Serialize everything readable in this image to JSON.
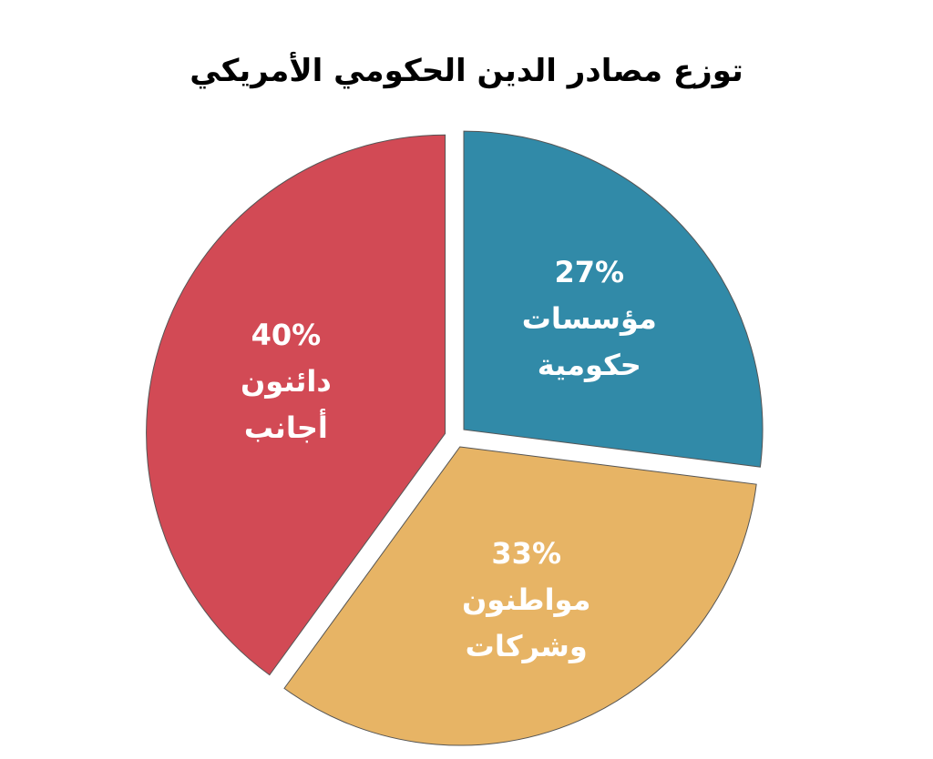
{
  "chart_data": {
    "type": "pie",
    "title": "توزع مصادر الدين الحكومي الأمريكي",
    "categories": [
      "مؤسسات حكومية",
      "مواطنون وشركات",
      "دائنون أجانب"
    ],
    "values": [
      27,
      33,
      40
    ],
    "value_labels": [
      "27%",
      "33%",
      "40%"
    ],
    "colors": [
      "#318aa8",
      "#e7b465",
      "#d24a55"
    ]
  }
}
